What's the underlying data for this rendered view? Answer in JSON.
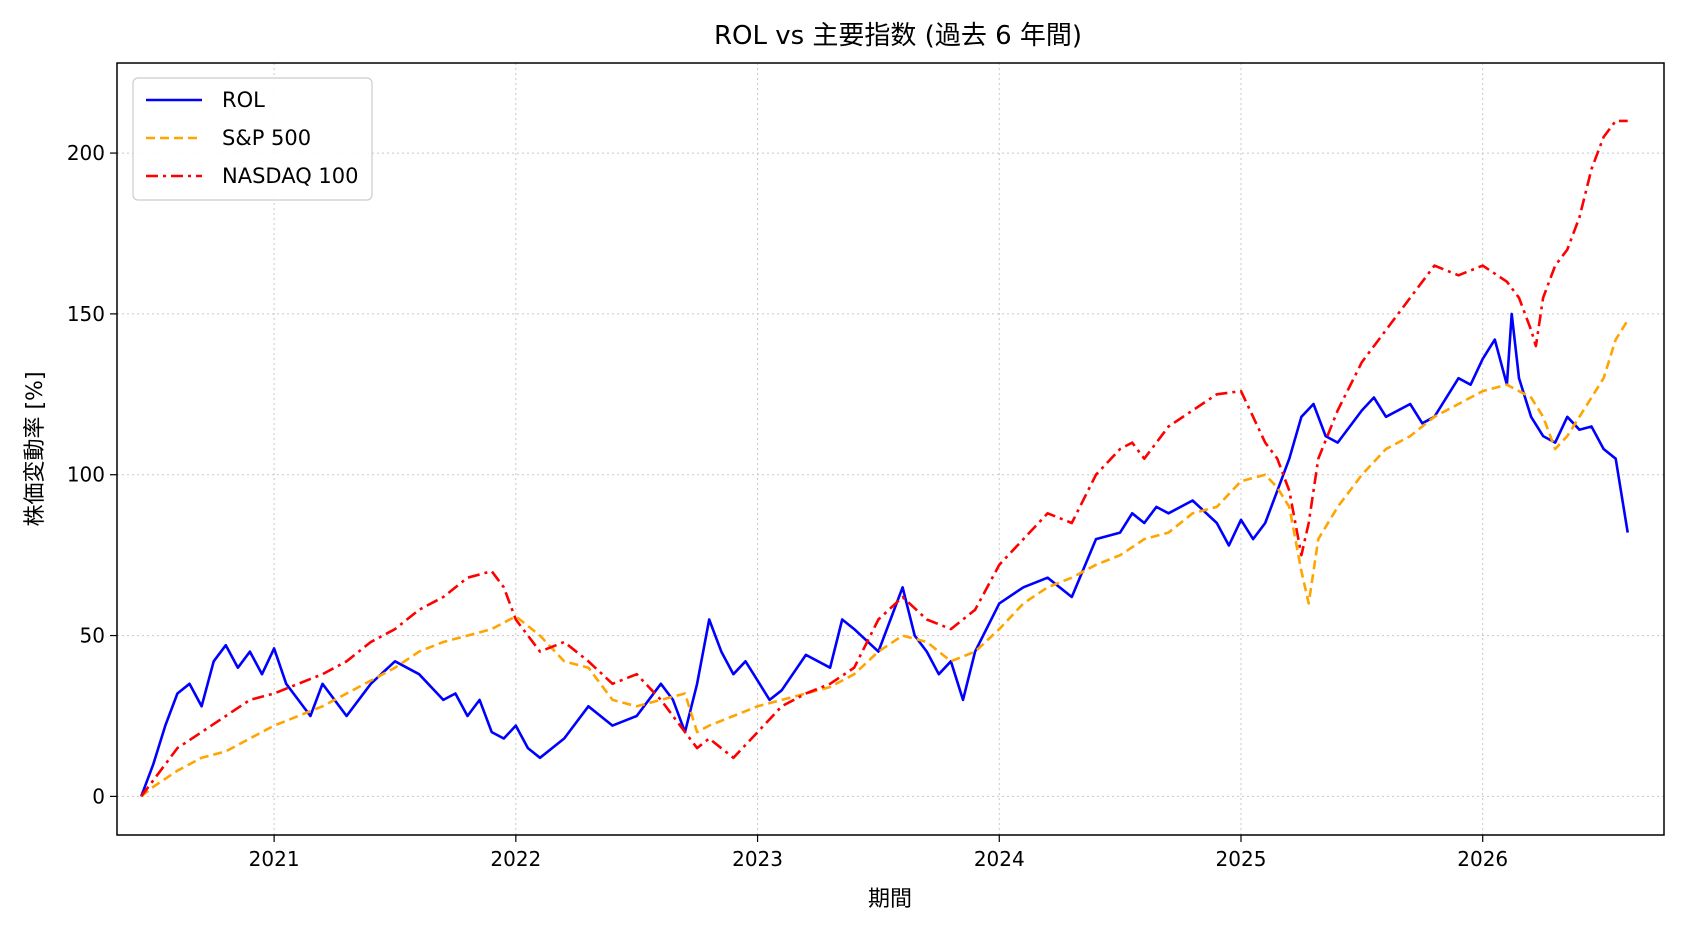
{
  "chart_data": {
    "type": "line",
    "title": "ROL vs 主要指数 (過去 6 年間)",
    "xlabel": "期間",
    "ylabel": "株価変動率 [%]",
    "x_ticks": [
      "2021",
      "2022",
      "2023",
      "2024",
      "2025",
      "2026"
    ],
    "y_ticks": [
      "0",
      "50",
      "100",
      "150",
      "200"
    ],
    "xlim": [
      2020.35,
      2026.75
    ],
    "ylim": [
      -12,
      228
    ],
    "grid": true,
    "legend_position": "top-left",
    "series": [
      {
        "name": "ROL",
        "color": "#0000ff",
        "style": "solid",
        "x": [
          2020.45,
          2020.5,
          2020.55,
          2020.6,
          2020.65,
          2020.7,
          2020.75,
          2020.8,
          2020.85,
          2020.9,
          2020.95,
          2021.0,
          2021.05,
          2021.1,
          2021.15,
          2021.2,
          2021.3,
          2021.4,
          2021.5,
          2021.6,
          2021.7,
          2021.75,
          2021.8,
          2021.85,
          2021.9,
          2021.95,
          2022.0,
          2022.05,
          2022.1,
          2022.2,
          2022.3,
          2022.4,
          2022.5,
          2022.6,
          2022.65,
          2022.7,
          2022.75,
          2022.8,
          2022.85,
          2022.9,
          2022.95,
          2023.0,
          2023.05,
          2023.1,
          2023.2,
          2023.3,
          2023.35,
          2023.4,
          2023.5,
          2023.55,
          2023.6,
          2023.65,
          2023.7,
          2023.75,
          2023.8,
          2023.85,
          2023.9,
          2024.0,
          2024.1,
          2024.2,
          2024.3,
          2024.4,
          2024.5,
          2024.55,
          2024.6,
          2024.65,
          2024.7,
          2024.8,
          2024.9,
          2024.95,
          2025.0,
          2025.05,
          2025.1,
          2025.15,
          2025.2,
          2025.25,
          2025.3,
          2025.35,
          2025.4,
          2025.5,
          2025.55,
          2025.6,
          2025.7,
          2025.75,
          2025.8,
          2025.9,
          2025.95,
          2026.0,
          2026.05,
          2026.1,
          2026.12,
          2026.15,
          2026.2,
          2026.25,
          2026.3,
          2026.35,
          2026.4,
          2026.45,
          2026.5,
          2026.55,
          2026.6
        ],
        "y": [
          0,
          10,
          22,
          32,
          35,
          28,
          42,
          47,
          40,
          45,
          38,
          46,
          35,
          30,
          25,
          35,
          25,
          35,
          42,
          38,
          30,
          32,
          25,
          30,
          20,
          18,
          22,
          15,
          12,
          18,
          28,
          22,
          25,
          35,
          30,
          20,
          35,
          55,
          45,
          38,
          42,
          36,
          30,
          33,
          44,
          40,
          55,
          52,
          45,
          55,
          65,
          50,
          45,
          38,
          42,
          30,
          45,
          60,
          65,
          68,
          62,
          80,
          82,
          88,
          85,
          90,
          88,
          92,
          85,
          78,
          86,
          80,
          85,
          95,
          105,
          118,
          122,
          112,
          110,
          120,
          124,
          118,
          122,
          116,
          118,
          130,
          128,
          136,
          142,
          128,
          150,
          130,
          118,
          112,
          110,
          118,
          114,
          115,
          108,
          105,
          82
        ]
      },
      {
        "name": "S&P 500",
        "color": "#ffa500",
        "style": "dashed",
        "x": [
          2020.45,
          2020.5,
          2020.6,
          2020.7,
          2020.8,
          2020.9,
          2021.0,
          2021.1,
          2021.2,
          2021.3,
          2021.4,
          2021.5,
          2021.6,
          2021.7,
          2021.8,
          2021.9,
          2022.0,
          2022.1,
          2022.2,
          2022.3,
          2022.4,
          2022.5,
          2022.6,
          2022.7,
          2022.75,
          2022.8,
          2022.9,
          2023.0,
          2023.1,
          2023.2,
          2023.3,
          2023.4,
          2023.5,
          2023.6,
          2023.7,
          2023.8,
          2023.9,
          2024.0,
          2024.1,
          2024.2,
          2024.3,
          2024.4,
          2024.5,
          2024.6,
          2024.7,
          2024.8,
          2024.9,
          2025.0,
          2025.1,
          2025.15,
          2025.2,
          2025.25,
          2025.28,
          2025.32,
          2025.4,
          2025.5,
          2025.6,
          2025.7,
          2025.8,
          2025.9,
          2026.0,
          2026.1,
          2026.2,
          2026.25,
          2026.3,
          2026.35,
          2026.4,
          2026.5,
          2026.55,
          2026.6
        ],
        "y": [
          0,
          3,
          8,
          12,
          14,
          18,
          22,
          25,
          28,
          32,
          36,
          40,
          45,
          48,
          50,
          52,
          56,
          50,
          42,
          40,
          30,
          28,
          30,
          32,
          20,
          22,
          25,
          28,
          30,
          32,
          34,
          38,
          45,
          50,
          48,
          42,
          45,
          52,
          60,
          65,
          68,
          72,
          75,
          80,
          82,
          88,
          90,
          98,
          100,
          96,
          90,
          70,
          60,
          80,
          90,
          100,
          108,
          112,
          118,
          122,
          126,
          128,
          124,
          118,
          108,
          112,
          118,
          130,
          142,
          148
        ]
      },
      {
        "name": "NASDAQ 100",
        "color": "#ff0000",
        "style": "dashdot",
        "x": [
          2020.45,
          2020.5,
          2020.6,
          2020.7,
          2020.8,
          2020.9,
          2021.0,
          2021.1,
          2021.2,
          2021.3,
          2021.4,
          2021.5,
          2021.6,
          2021.7,
          2021.8,
          2021.9,
          2021.95,
          2022.0,
          2022.1,
          2022.2,
          2022.3,
          2022.4,
          2022.5,
          2022.6,
          2022.7,
          2022.75,
          2022.8,
          2022.9,
          2023.0,
          2023.1,
          2023.2,
          2023.3,
          2023.4,
          2023.5,
          2023.6,
          2023.7,
          2023.8,
          2023.9,
          2024.0,
          2024.1,
          2024.2,
          2024.3,
          2024.4,
          2024.5,
          2024.55,
          2024.6,
          2024.7,
          2024.8,
          2024.9,
          2025.0,
          2025.05,
          2025.1,
          2025.15,
          2025.2,
          2025.25,
          2025.28,
          2025.32,
          2025.4,
          2025.5,
          2025.6,
          2025.7,
          2025.8,
          2025.9,
          2026.0,
          2026.1,
          2026.15,
          2026.2,
          2026.22,
          2026.25,
          2026.3,
          2026.35,
          2026.4,
          2026.45,
          2026.5,
          2026.55,
          2026.6
        ],
        "y": [
          0,
          5,
          15,
          20,
          25,
          30,
          32,
          35,
          38,
          42,
          48,
          52,
          58,
          62,
          68,
          70,
          65,
          55,
          45,
          48,
          42,
          35,
          38,
          30,
          20,
          15,
          18,
          12,
          20,
          28,
          32,
          35,
          40,
          55,
          62,
          55,
          52,
          58,
          72,
          80,
          88,
          85,
          100,
          108,
          110,
          105,
          115,
          120,
          125,
          126,
          118,
          110,
          105,
          95,
          75,
          85,
          105,
          120,
          135,
          145,
          155,
          165,
          162,
          165,
          160,
          155,
          145,
          140,
          155,
          165,
          170,
          180,
          195,
          205,
          210,
          210
        ]
      }
    ]
  }
}
